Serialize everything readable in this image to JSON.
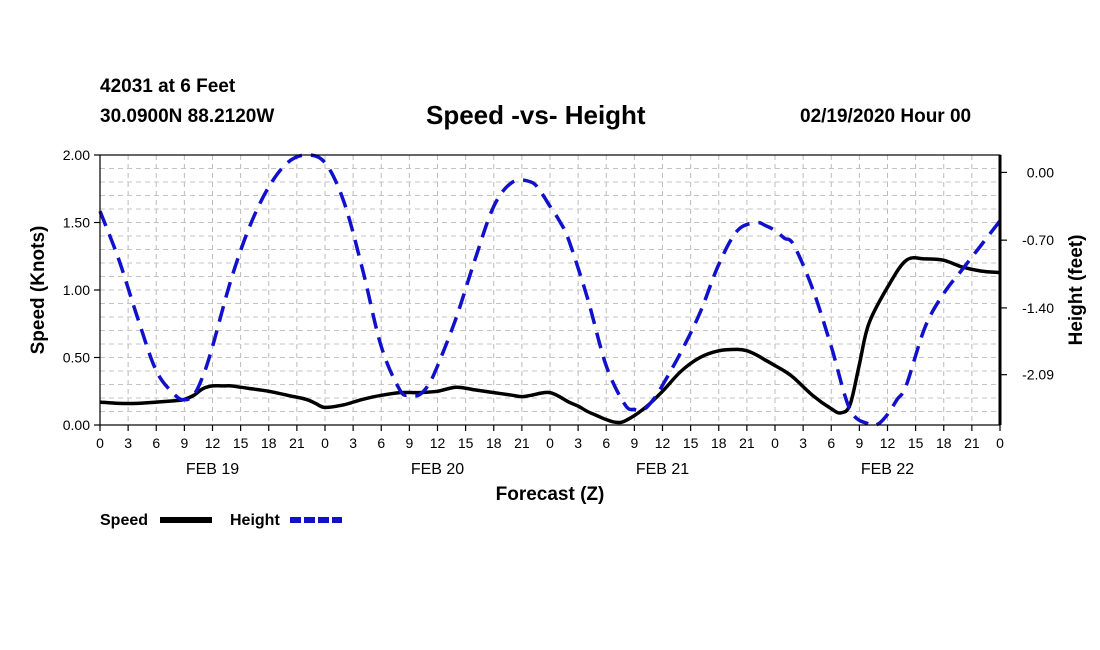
{
  "header": {
    "station": "42031 at 6 Feet",
    "coords": "30.0900N 88.2120W",
    "title": "Speed -vs- Height",
    "timestamp": "02/19/2020 Hour 00"
  },
  "chart_data": {
    "type": "line",
    "title": "Speed -vs- Height",
    "xlabel": "Forecast (Z)",
    "ylabel": "Speed (Knots)",
    "ylabel_right": "Height (feet)",
    "x_unit": "hours from 02/19/2020 00Z",
    "x_range": [
      0,
      96
    ],
    "x_tick_step": 3,
    "x_tick_labels": [
      "0",
      "3",
      "6",
      "9",
      "12",
      "15",
      "18",
      "21",
      "0",
      "3",
      "6",
      "9",
      "12",
      "15",
      "18",
      "21",
      "0",
      "3",
      "6",
      "9",
      "12",
      "15",
      "18",
      "21",
      "0",
      "3",
      "6",
      "9",
      "12",
      "15",
      "18",
      "21",
      "0"
    ],
    "day_labels": [
      {
        "label": "FEB 19",
        "x": 12
      },
      {
        "label": "FEB 20",
        "x": 36
      },
      {
        "label": "FEB 21",
        "x": 60
      },
      {
        "label": "FEB 22",
        "x": 84
      }
    ],
    "ylim_left": [
      0,
      2
    ],
    "y_ticks_left": [
      "0.00",
      "0.50",
      "1.00",
      "1.50",
      "2.00"
    ],
    "y_ticks_right": [
      {
        "label": "0.00",
        "value": 0.0
      },
      {
        "label": "-0.70",
        "value": -0.7
      },
      {
        "label": "-1.40",
        "value": -1.4
      },
      {
        "label": "-2.09",
        "value": -2.09
      }
    ],
    "right_axis_map": {
      "left": [
        0,
        2
      ],
      "right": [
        -2.61,
        0.18
      ]
    },
    "grid": true,
    "series": [
      {
        "name": "Speed",
        "axis": "left",
        "color": "#000000",
        "style": "solid",
        "x": [
          0,
          2,
          4,
          6,
          8,
          9,
          10,
          11,
          12,
          13,
          14,
          15,
          16,
          18,
          20,
          22,
          23,
          24,
          26,
          28,
          30,
          32,
          34,
          36,
          38,
          40,
          42,
          44,
          45,
          46,
          48,
          50,
          51,
          52,
          53,
          54,
          55,
          56,
          58,
          60,
          62,
          64,
          66,
          68,
          69,
          70,
          71,
          72,
          73,
          74,
          76,
          78,
          79,
          80,
          81,
          82,
          84,
          86,
          88,
          90,
          92,
          94,
          96
        ],
        "y": [
          0.17,
          0.16,
          0.16,
          0.17,
          0.18,
          0.19,
          0.22,
          0.27,
          0.29,
          0.29,
          0.29,
          0.28,
          0.27,
          0.25,
          0.22,
          0.19,
          0.16,
          0.13,
          0.15,
          0.19,
          0.22,
          0.24,
          0.24,
          0.25,
          0.28,
          0.26,
          0.24,
          0.22,
          0.21,
          0.22,
          0.24,
          0.17,
          0.14,
          0.1,
          0.07,
          0.04,
          0.02,
          0.03,
          0.12,
          0.25,
          0.4,
          0.5,
          0.55,
          0.56,
          0.55,
          0.52,
          0.48,
          0.44,
          0.4,
          0.35,
          0.22,
          0.12,
          0.09,
          0.15,
          0.45,
          0.75,
          1.02,
          1.22,
          1.23,
          1.22,
          1.17,
          1.14,
          1.13
        ]
      },
      {
        "name": "Height",
        "axis": "right",
        "color": "#1111cc",
        "style": "dashed",
        "x": [
          0,
          2,
          4,
          6,
          8,
          9,
          10,
          11,
          12,
          14,
          16,
          18,
          20,
          22,
          24,
          26,
          28,
          30,
          32,
          33,
          34,
          35,
          36,
          38,
          40,
          42,
          44,
          46,
          47,
          48,
          49,
          50,
          52,
          54,
          56,
          57,
          58,
          59,
          60,
          62,
          64,
          66,
          68,
          70,
          71,
          72,
          73,
          74,
          76,
          78,
          80,
          82,
          83,
          84,
          85,
          86,
          88,
          90,
          92,
          94,
          96
        ],
        "y": [
          -0.4,
          -0.9,
          -1.5,
          -2.05,
          -2.3,
          -2.35,
          -2.3,
          -2.1,
          -1.8,
          -1.1,
          -0.55,
          -0.15,
          0.1,
          0.18,
          0.1,
          -0.3,
          -1.0,
          -1.8,
          -2.25,
          -2.3,
          -2.3,
          -2.2,
          -2.0,
          -1.5,
          -0.9,
          -0.35,
          -0.1,
          -0.1,
          -0.2,
          -0.35,
          -0.5,
          -0.7,
          -1.3,
          -2.0,
          -2.4,
          -2.45,
          -2.45,
          -2.35,
          -2.2,
          -1.85,
          -1.45,
          -0.95,
          -0.6,
          -0.52,
          -0.55,
          -0.6,
          -0.68,
          -0.75,
          -1.2,
          -1.8,
          -2.45,
          -2.6,
          -2.6,
          -2.5,
          -2.35,
          -2.2,
          -1.6,
          -1.25,
          -1.0,
          -0.75,
          -0.5
        ]
      }
    ],
    "legend": [
      {
        "name": "Speed",
        "color": "#000000",
        "style": "solid"
      },
      {
        "name": "Height",
        "color": "#1111cc",
        "style": "dashed"
      }
    ],
    "legend_position": "bottom-left"
  }
}
